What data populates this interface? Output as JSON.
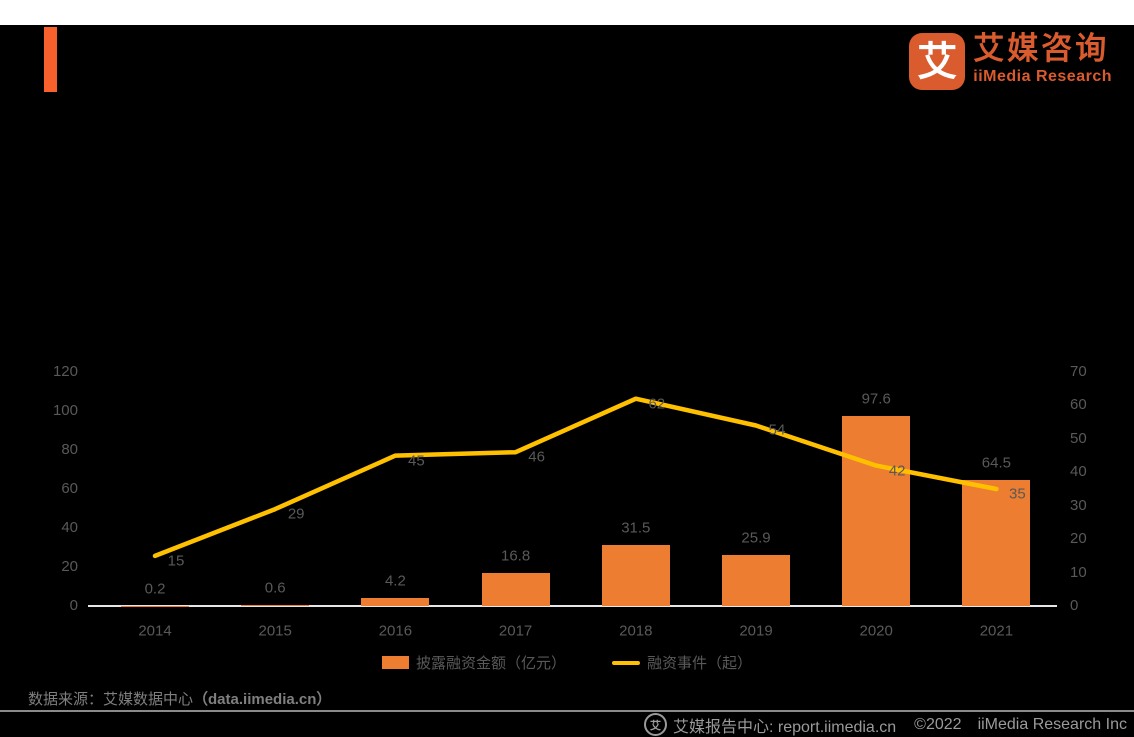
{
  "page": {
    "background": "#000000",
    "top_strip_color": "#FFFFFF"
  },
  "header": {
    "accent_bar_color": "#F8602C"
  },
  "brand": {
    "logo_glyph": "艾",
    "logo_color": "#D95B2E",
    "name_cn": "艾媒咨询",
    "name_en": "iiMedia Research"
  },
  "chart_data": {
    "type": "bar",
    "subtype": "combo-bar-line-dual-axis",
    "categories": [
      "2014",
      "2015",
      "2016",
      "2017",
      "2018",
      "2019",
      "2020",
      "2021"
    ],
    "series": [
      {
        "name": "披露融资金额（亿元）",
        "type": "bar",
        "axis": "left",
        "color": "#ED7D31",
        "values": [
          0.2,
          0.6,
          4.2,
          16.8,
          31.5,
          25.9,
          97.6,
          64.5
        ],
        "labels": [
          "0.2",
          "0.6",
          "4.2",
          "16.8",
          "31.5",
          "25.9",
          "97.6",
          "64.5"
        ]
      },
      {
        "name": "融资事件（起）",
        "type": "line",
        "axis": "right",
        "color": "#FFC000",
        "values": [
          15,
          29,
          45,
          46,
          62,
          54,
          42,
          35
        ],
        "labels": [
          "15",
          "29",
          "45",
          "46",
          "62",
          "54",
          "42",
          "35"
        ]
      }
    ],
    "left_axis": {
      "min": 0,
      "max": 120,
      "step": 20,
      "ticks": [
        0,
        20,
        40,
        60,
        80,
        100,
        120
      ]
    },
    "right_axis": {
      "min": 0,
      "max": 70,
      "step": 10,
      "ticks": [
        0,
        10,
        20,
        30,
        40,
        50,
        60,
        70
      ]
    },
    "title": "",
    "xlabel": "",
    "ylabel": "",
    "grid": false,
    "legend_position": "bottom",
    "label_color": "#595959",
    "axis_line_color": "#E7E6E6"
  },
  "legend": {
    "items": [
      {
        "label": "披露融资金额（亿元）",
        "swatch": "bar",
        "color": "#ED7D31"
      },
      {
        "label": "融资事件（起）",
        "swatch": "line",
        "color": "#FFC000"
      }
    ]
  },
  "source": {
    "prefix": "数据来源：艾媒数据中心",
    "url": "（data.iimedia.cn）"
  },
  "footer": {
    "logo_glyph": "艾",
    "report_center": "艾媒报告中心:  report.iimedia.cn",
    "copyright": "©2022",
    "company": "iiMedia Research  Inc"
  }
}
